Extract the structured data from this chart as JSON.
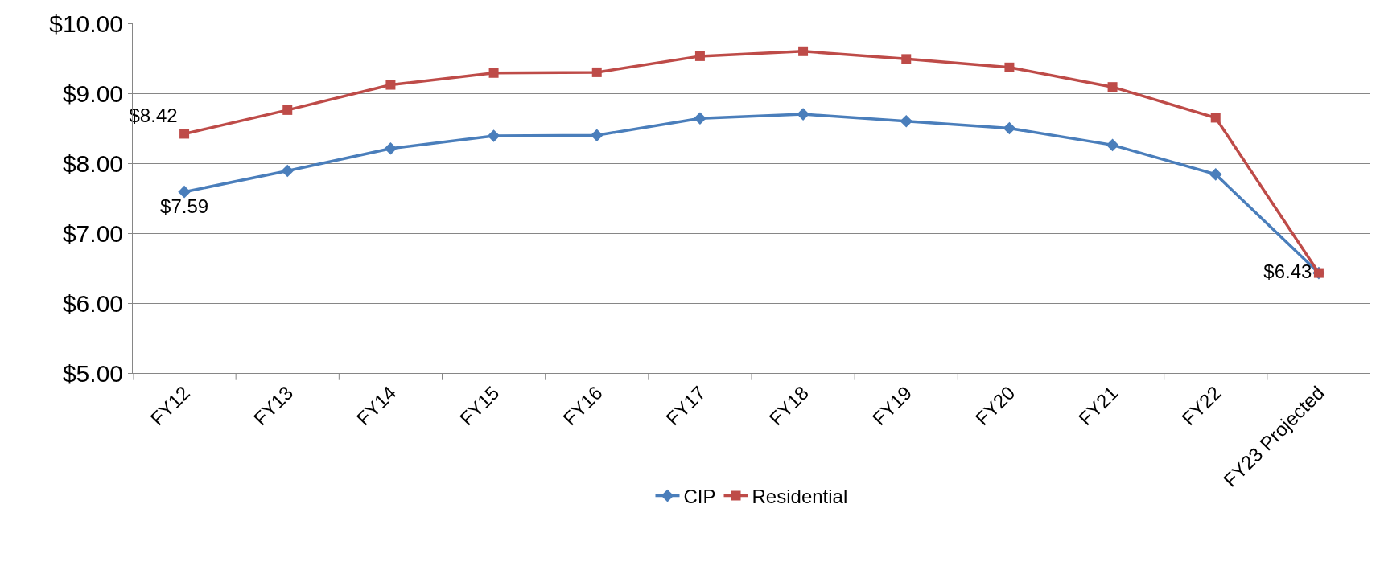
{
  "chart_data": {
    "type": "line",
    "categories": [
      "FY12",
      "FY13",
      "FY14",
      "FY15",
      "FY16",
      "FY17",
      "FY18",
      "FY19",
      "FY20",
      "FY21",
      "FY22",
      "FY23 Projected"
    ],
    "series": [
      {
        "name": "CIP",
        "color": "#4a7ebb",
        "marker": "diamond",
        "values": [
          7.59,
          7.89,
          8.21,
          8.39,
          8.4,
          8.64,
          8.7,
          8.6,
          8.5,
          8.26,
          7.84,
          6.43
        ],
        "value_labels": [
          "$7.59",
          null,
          null,
          null,
          null,
          null,
          null,
          null,
          null,
          null,
          null,
          null
        ]
      },
      {
        "name": "Residential",
        "color": "#be4b48",
        "marker": "square",
        "values": [
          8.42,
          8.76,
          9.12,
          9.29,
          9.3,
          9.53,
          9.6,
          9.49,
          9.37,
          9.09,
          8.65,
          6.43
        ],
        "value_labels": [
          "$8.42",
          null,
          null,
          null,
          null,
          null,
          null,
          null,
          null,
          null,
          null,
          "$6.43"
        ]
      }
    ],
    "ylim": [
      5,
      10
    ],
    "yticks": [
      {
        "value": 5,
        "label": "$5.00"
      },
      {
        "value": 6,
        "label": "$6.00"
      },
      {
        "value": 7,
        "label": "$7.00"
      },
      {
        "value": 8,
        "label": "$8.00"
      },
      {
        "value": 9,
        "label": "$9.00"
      },
      {
        "value": 10,
        "label": "$10.00"
      }
    ],
    "grid": "y",
    "legend": "bottom",
    "line_style": "solid"
  }
}
